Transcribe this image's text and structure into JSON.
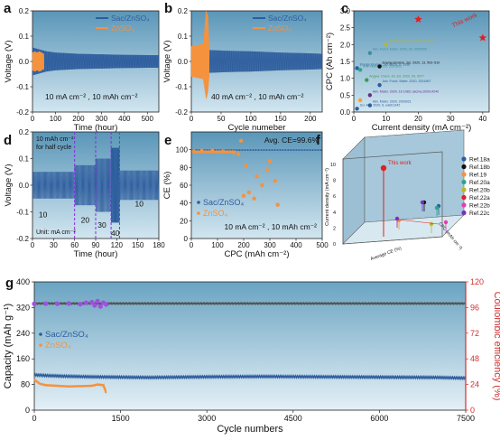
{
  "chart_data": [
    {
      "panel": "a",
      "type": "line",
      "xlabel": "Time (hour)",
      "ylabel": "Voltage (V)",
      "xlim": [
        0,
        550
      ],
      "ylim": [
        -0.2,
        0.2
      ],
      "xticks": [
        0,
        100,
        200,
        300,
        400,
        500
      ],
      "yticks": [
        -0.2,
        -0.1,
        0.0,
        0.1,
        0.2
      ],
      "annotation": "10 mA cm⁻² , 10 mAh cm⁻²",
      "series": [
        {
          "name": "Sac/ZnSO₄",
          "color": "#2e5d9e",
          "x": [
            0,
            20,
            60,
            100,
            200,
            300,
            400,
            500,
            550
          ],
          "y_upper": [
            0.055,
            0.05,
            0.04,
            0.035,
            0.03,
            0.028,
            0.026,
            0.025,
            0.025
          ],
          "y_lower": [
            -0.055,
            -0.05,
            -0.04,
            -0.035,
            -0.03,
            -0.028,
            -0.026,
            -0.025,
            -0.025
          ]
        },
        {
          "name": "ZnSO₄",
          "color": "#f5923e",
          "x": [
            0,
            10,
            20,
            30,
            40,
            50
          ],
          "y_upper": [
            0.035,
            0.04,
            0.035,
            0.04,
            0.035,
            0.03
          ],
          "y_lower": [
            -0.035,
            -0.04,
            -0.035,
            -0.04,
            -0.035,
            -0.03
          ]
        }
      ]
    },
    {
      "panel": "b",
      "type": "line",
      "xlabel": "Cycle numeber",
      "ylabel": "Voltage (V)",
      "xlim": [
        0,
        220
      ],
      "ylim": [
        -0.2,
        0.2
      ],
      "xticks": [
        0,
        50,
        100,
        150,
        200
      ],
      "yticks": [
        -0.2,
        -0.1,
        0.0,
        0.1,
        0.2
      ],
      "annotation": "40 mA cm⁻² , 10 mAh cm⁻²",
      "series": [
        {
          "name": "Sac/ZnSO₄",
          "color": "#2e5d9e",
          "x": [
            0,
            30,
            60,
            100,
            150,
            200,
            220
          ],
          "y_upper": [
            0.05,
            0.045,
            0.042,
            0.04,
            0.035,
            0.032,
            0.03
          ],
          "y_lower": [
            -0.05,
            -0.045,
            -0.042,
            -0.04,
            -0.035,
            -0.032,
            -0.03
          ]
        },
        {
          "name": "ZnSO₄",
          "color": "#f5923e",
          "x": [
            0,
            10,
            20,
            25,
            28,
            30
          ],
          "y_upper": [
            0.06,
            0.065,
            0.07,
            0.2,
            0.18,
            0.06
          ],
          "y_lower": [
            -0.06,
            -0.065,
            -0.07,
            -0.15,
            -0.12,
            -0.06
          ]
        }
      ]
    },
    {
      "panel": "c",
      "type": "scatter",
      "xlabel": "Current density (mA cm⁻²)",
      "ylabel": "CPC (Ah cm⁻²)",
      "xlim": [
        0,
        42
      ],
      "ylim": [
        0,
        3.0
      ],
      "xticks": [
        0,
        10,
        20,
        30,
        40
      ],
      "yticks": [
        0.0,
        0.5,
        1.0,
        1.5,
        2.0,
        2.5,
        3.0
      ],
      "points": [
        {
          "label": "Energy Environ. Sci. 2020, 6, 1938",
          "x": 1,
          "y": 1.3,
          "color": "#2e5d9e"
        },
        {
          "label": "Adv. Funct. Mater. 2020, 30, 2000599",
          "x": 5,
          "y": 1.75,
          "color": "#3a8fa0"
        },
        {
          "label": "Adv. Mater. 2020, 2001603",
          "x": 2,
          "y": 1.25,
          "color": "#2ba58a"
        },
        {
          "label": "Energy Environ. Sci. 2020, 13, 503–510",
          "x": 8,
          "y": 1.35,
          "color": "#111111"
        },
        {
          "label": "ACS Energy Lett. 2020, 5, 3012",
          "x": 10,
          "y": 2.0,
          "color": "#b8b82a"
        },
        {
          "label": "Angew. Chem. Int. Ed. 2020, 59, 9377",
          "x": 4,
          "y": 0.95,
          "color": "#3a9b4b"
        },
        {
          "label": "Adv. Funct. Mater. 2020, 2001867",
          "x": 8,
          "y": 0.8,
          "color": "#2e5d9e"
        },
        {
          "label": "Adv. Mater. 2020, 16 1083; ascma.2020c4240",
          "x": 5,
          "y": 0.5,
          "color": "#6a2d8f"
        },
        {
          "label": "Adv. Mater. 2020, 2003021",
          "x": 5,
          "y": 0.2,
          "color": "#2e5d9e"
        },
        {
          "label": "Sci. Adv. 2020, 6, eabb1342",
          "x": 1,
          "y": 0.1,
          "color": "#2e5d9e"
        },
        {
          "label": "",
          "x": 2,
          "y": 0.35,
          "color": "#f5a030"
        },
        {
          "label": "This work",
          "x": 20,
          "y": 2.75,
          "color": "#e02020",
          "marker": "star"
        },
        {
          "label": "This work",
          "x": 40,
          "y": 2.2,
          "color": "#e02020",
          "marker": "star"
        }
      ]
    },
    {
      "panel": "d",
      "type": "line",
      "xlabel": "Time (hour)",
      "ylabel": "Voltage (V)",
      "xlim": [
        0,
        180
      ],
      "ylim": [
        -0.2,
        0.2
      ],
      "xticks": [
        0,
        30,
        60,
        90,
        120,
        150,
        180
      ],
      "yticks": [
        -0.2,
        -0.1,
        0.0,
        0.1,
        0.2
      ],
      "annotation_top": "10 mAh cm⁻² for half cycle",
      "annotation_bottom": "Unit: mA cm⁻²",
      "vlines": [
        60,
        90,
        112,
        124
      ],
      "segments": [
        {
          "label": "10",
          "x": [
            0,
            60
          ],
          "amp": 0.05
        },
        {
          "label": "20",
          "x": [
            60,
            90
          ],
          "amp": 0.075
        },
        {
          "label": "30",
          "x": [
            90,
            112
          ],
          "amp": 0.1
        },
        {
          "label": "40",
          "x": [
            112,
            124
          ],
          "amp": 0.14
        },
        {
          "label": "10",
          "x": [
            124,
            180
          ],
          "amp": 0.055
        }
      ],
      "color": "#2e5d9e"
    },
    {
      "panel": "e",
      "type": "scatter",
      "xlabel": "CPC (mAh cm⁻²)",
      "ylabel": "CE (%)",
      "xlim": [
        0,
        500
      ],
      "ylim": [
        0,
        120
      ],
      "xticks": [
        0,
        100,
        200,
        300,
        400,
        500
      ],
      "yticks": [
        0,
        20,
        40,
        60,
        80,
        100
      ],
      "annotation": "10 mA cm⁻² , 10 mAh cm⁻²",
      "annotation2": "Avg. CE=99.6%",
      "series": [
        {
          "name": "Sac/ZnSO₄",
          "color": "#2e5d9e",
          "x": [
            10,
            50,
            100,
            150,
            200,
            250,
            300,
            350,
            400,
            450,
            500
          ],
          "y": [
            99.5,
            99.6,
            99.6,
            99.6,
            99.7,
            99.6,
            99.6,
            99.7,
            99.6,
            99.6,
            99.6
          ]
        },
        {
          "name": "ZnSO₄",
          "color": "#f5923e",
          "x": [
            10,
            40,
            80,
            120,
            160,
            180,
            190,
            200,
            210,
            220,
            240,
            250,
            270,
            290,
            300,
            320,
            330
          ],
          "y": [
            98,
            99,
            99,
            98,
            97,
            95,
            110,
            48,
            82,
            52,
            45,
            70,
            60,
            77,
            87,
            65,
            38
          ]
        }
      ]
    },
    {
      "panel": "f",
      "type": "scatter3d",
      "xlabel": "Average CE (%)",
      "ylabel": "CPC (mAh cm⁻²)",
      "zlabel": "Current density (mA cm⁻²)",
      "zticks": [
        0,
        2,
        4,
        6,
        8,
        10
      ],
      "annotation": "This work",
      "legend": [
        {
          "name": "Ref.18a",
          "color": "#2e5d9e"
        },
        {
          "name": "Ref.18b",
          "color": "#111111"
        },
        {
          "name": "Ref.19",
          "color": "#f5923e"
        },
        {
          "name": "Ref.20a",
          "color": "#2ba58a"
        },
        {
          "name": "Ref.20b",
          "color": "#b8b82a"
        },
        {
          "name": "Ref.22a",
          "color": "#e02020"
        },
        {
          "name": "Ref.22b",
          "color": "#e040b0"
        },
        {
          "name": "Ref.22c",
          "color": "#7a2fc0"
        }
      ]
    },
    {
      "panel": "g",
      "type": "scatter",
      "xlabel": "Cycle numbers",
      "ylabel": "Capacity (mAh g⁻¹)",
      "y2label": "Coulombic efficiency (%)",
      "xlim": [
        0,
        7500
      ],
      "ylim": [
        0,
        400
      ],
      "y2lim": [
        0,
        120
      ],
      "xticks": [
        0,
        1500,
        3000,
        4500,
        6000,
        7500
      ],
      "yticks": [
        0,
        80,
        160,
        240,
        320,
        400
      ],
      "y2ticks": [
        0,
        24,
        48,
        72,
        96,
        120
      ],
      "series": [
        {
          "name": "Sac/ZnSO₄ capacity",
          "color": "#2e5d9e",
          "x": [
            0,
            200,
            500,
            1000,
            1500,
            2000,
            3000,
            4000,
            5000,
            6000,
            7000,
            7500
          ],
          "y": [
            110,
            108,
            106,
            104,
            103,
            102,
            104,
            105,
            104,
            103,
            102,
            100
          ]
        },
        {
          "name": "ZnSO₄ capacity",
          "color": "#f5923e",
          "x": [
            0,
            100,
            200,
            400,
            600,
            800,
            1000,
            1100,
            1200,
            1250
          ],
          "y": [
            95,
            82,
            78,
            76,
            74,
            75,
            76,
            80,
            78,
            55
          ]
        },
        {
          "name": "Sac/ZnSO₄ CE",
          "color": "#555555",
          "x": [
            0,
            1000,
            2000,
            3000,
            4000,
            5000,
            6000,
            7000,
            7500
          ],
          "y": [
            99.8,
            99.8,
            99.9,
            99.8,
            99.9,
            99.8,
            99.9,
            99.8,
            99.8
          ]
        },
        {
          "name": "ZnSO₄ CE",
          "color": "#a050e0",
          "x": [
            0,
            200,
            400,
            600,
            800,
            900,
            1000,
            1050,
            1100,
            1150,
            1200,
            1250
          ],
          "y": [
            99.5,
            99.7,
            99.6,
            99.8,
            99.2,
            100.5,
            101,
            98,
            102,
            97,
            100.5,
            99
          ]
        }
      ],
      "legend": [
        {
          "name": "Sac/ZnSO₄",
          "color": "#2e5d9e"
        },
        {
          "name": "ZnSO₄",
          "color": "#f5923e"
        }
      ]
    }
  ],
  "panel_labels": [
    "a",
    "b",
    "c",
    "d",
    "e",
    "f",
    "g"
  ],
  "colors": {
    "bg_gradient_top": "#5a96b8",
    "bg_gradient_bottom": "#d2e6f0",
    "sac": "#2e5d9e",
    "znso4": "#f5923e",
    "ce_axis": "#d03030"
  }
}
